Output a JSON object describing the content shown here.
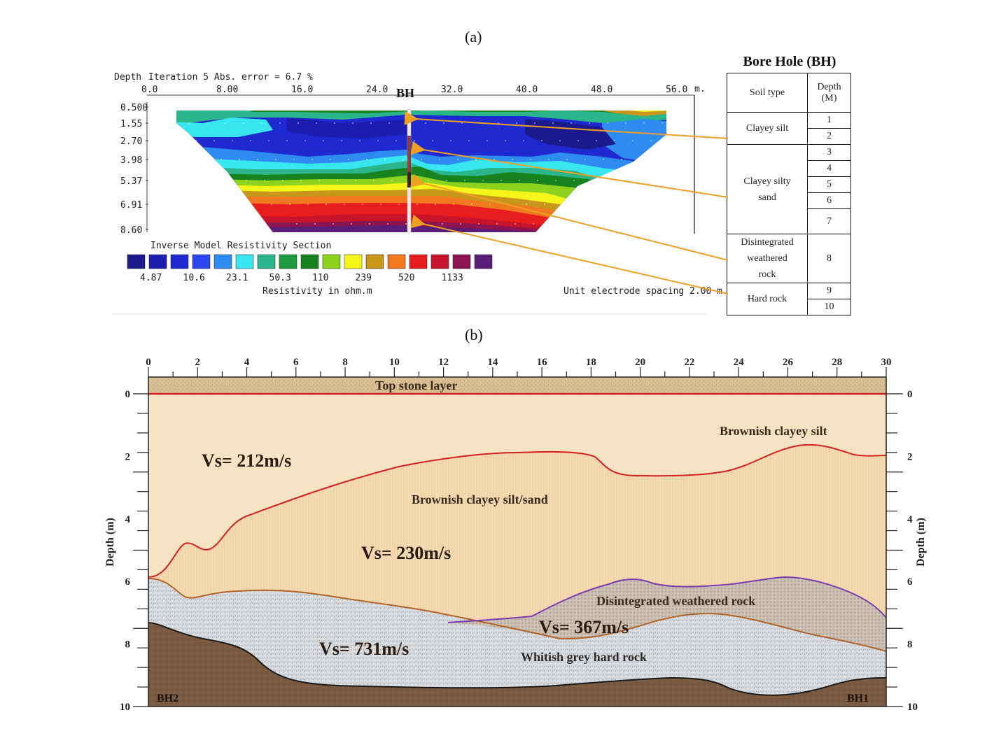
{
  "panel_a_label": "(a)",
  "panel_b_label": "(b)",
  "ert": {
    "header_depth": "Depth",
    "header_iteration": "Iteration 5 Abs. error = 6.7 %",
    "x_ticks": [
      "0.0",
      "8.00",
      "16.0",
      "24.0",
      "32.0",
      "40.0",
      "48.0",
      "56.0"
    ],
    "x_unit": "m.",
    "depth_ticks": [
      "0.500",
      "1.55",
      "2.70",
      "3.98",
      "5.37",
      "6.91",
      "8.60"
    ],
    "bh_label": "BH",
    "section_title": "Inverse Model Resistivity Section",
    "scale_colors": [
      "#1a1a8c",
      "#1c1cb0",
      "#1e2ad0",
      "#2b46f0",
      "#2e8cf0",
      "#38e6f0",
      "#2ab58a",
      "#1e9a3c",
      "#17821e",
      "#8cd21e",
      "#f5f51a",
      "#c8961a",
      "#f0781e",
      "#e81e1e",
      "#c8142a",
      "#8c1450",
      "#5a1e78"
    ],
    "scale_values": [
      "4.87",
      "10.6",
      "23.1",
      "50.3",
      "110",
      "239",
      "520",
      "1133"
    ],
    "scale_caption": "Resistivity in ohm.m",
    "spacing_caption": "Unit electrode spacing 2.00 m."
  },
  "borehole": {
    "title": "Bore Hole (BH)",
    "col_soil": "Soil type",
    "col_depth_line1": "Depth",
    "col_depth_line2": "(M)",
    "soils": [
      {
        "name_lines": [
          "Clayey silt"
        ],
        "depths": [
          "1",
          "2"
        ]
      },
      {
        "name_lines": [
          "Clayey silty",
          "sand"
        ],
        "depths": [
          "3",
          "4",
          "5",
          "6",
          "7"
        ]
      },
      {
        "name_lines": [
          "Disintegrated",
          "weathered",
          "rock"
        ],
        "depths": [
          "8"
        ]
      },
      {
        "name_lines": [
          "Hard rock"
        ],
        "depths": [
          "9",
          "10"
        ]
      }
    ]
  },
  "section": {
    "x_ticks": [
      "0",
      "2",
      "4",
      "6",
      "8",
      "10",
      "12",
      "14",
      "16",
      "18",
      "20",
      "22",
      "24",
      "26",
      "28",
      "30"
    ],
    "depth_ticks": [
      "0",
      "2",
      "4",
      "6",
      "8",
      "10"
    ],
    "depth_axis_label": "Depth (m)",
    "layer_top": "Top stone layer",
    "layer_brown_silt": "Brownish clayey silt",
    "layer_silt_sand": "Brownish clayey silt/sand",
    "layer_weathered": "Disintegrated weathered rock",
    "layer_hard": "Whitish grey hard rock",
    "vs1": "Vs= 212m/s",
    "vs2": "Vs= 230m/s",
    "vs3": "Vs= 367m/s",
    "vs4": "Vs= 731m/s",
    "bh_left": "BH2",
    "bh_right": "BH1"
  }
}
